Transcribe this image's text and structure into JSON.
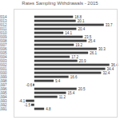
{
  "chart_data": {
    "type": "bar",
    "orientation": "horizontal",
    "title": "Rates Sampling Withdrawals - 2015",
    "categories": [
      "2014",
      "2013",
      "2012",
      "2011",
      "2010",
      "2009",
      "2008",
      "2007",
      "2006",
      "2005",
      "2004",
      "2003",
      "2002",
      "2001",
      "2000",
      "1999",
      "1998",
      "1997",
      "1996",
      "1995",
      "1994",
      "1993",
      "1992",
      "1991"
    ],
    "values": [
      18.8,
      20.1,
      33.7,
      20.4,
      14.1,
      23.5,
      25.4,
      19.2,
      30.3,
      26.1,
      17.2,
      20.9,
      36.4,
      34.4,
      32.4,
      16.6,
      9.4,
      -0.6,
      20.5,
      15.4,
      11.2,
      -4.1,
      -1.5,
      4.8
    ],
    "color": "#404040",
    "xlim": [
      -10,
      40
    ],
    "grid": false,
    "data_labels": true,
    "tick_labels": "y"
  }
}
